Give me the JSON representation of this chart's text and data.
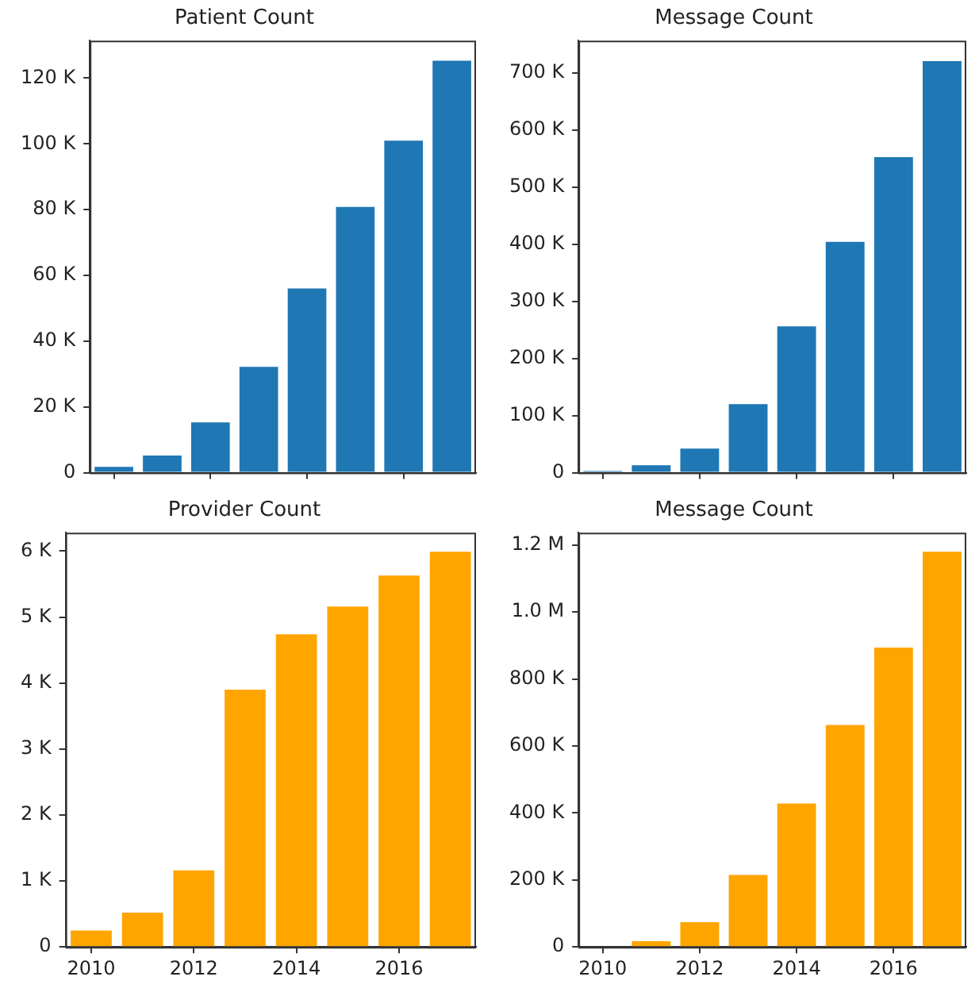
{
  "chart_data": [
    {
      "type": "bar",
      "title": "Patient Count",
      "categories": [
        "2010",
        null,
        "2012",
        null,
        "2014",
        null,
        "2016",
        null
      ],
      "values": [
        1800,
        5200,
        15300,
        32200,
        56000,
        80800,
        101000,
        125300
      ],
      "color": "#1f77b4",
      "ylim": [
        0,
        131400
      ],
      "yticks": [
        {
          "value": 0,
          "label": "0"
        },
        {
          "value": 20000,
          "label": "20 K"
        },
        {
          "value": 40000,
          "label": "40 K"
        },
        {
          "value": 60000,
          "label": "60 K"
        },
        {
          "value": 80000,
          "label": "80 K"
        },
        {
          "value": 100000,
          "label": "100 K"
        },
        {
          "value": 120000,
          "label": "120 K"
        }
      ],
      "tick_labels": "y",
      "grid": false,
      "legend": false
    },
    {
      "type": "bar",
      "title": "Message Count",
      "categories": [
        "2010",
        null,
        "2012",
        null,
        "2014",
        null,
        "2016",
        null
      ],
      "values": [
        3000,
        13000,
        42000,
        120000,
        256000,
        404000,
        552000,
        720000
      ],
      "color": "#1f77b4",
      "ylim": [
        0,
        756000
      ],
      "yticks": [
        {
          "value": 0,
          "label": "0"
        },
        {
          "value": 100000,
          "label": "100 K"
        },
        {
          "value": 200000,
          "label": "200 K"
        },
        {
          "value": 300000,
          "label": "300 K"
        },
        {
          "value": 400000,
          "label": "400 K"
        },
        {
          "value": 500000,
          "label": "500 K"
        },
        {
          "value": 600000,
          "label": "600 K"
        },
        {
          "value": 700000,
          "label": "700 K"
        }
      ],
      "tick_labels": "y",
      "grid": false,
      "legend": false
    },
    {
      "type": "bar",
      "title": "Provider Count",
      "categories": [
        "2010",
        null,
        "2012",
        null,
        "2014",
        null,
        "2016",
        null
      ],
      "values": [
        250,
        520,
        1160,
        3900,
        4740,
        5160,
        5630,
        5990
      ],
      "color": "#ffa500",
      "ylim": [
        0,
        6280
      ],
      "yticks": [
        {
          "value": 0,
          "label": "0"
        },
        {
          "value": 1000,
          "label": "1 K"
        },
        {
          "value": 2000,
          "label": "2 K"
        },
        {
          "value": 3000,
          "label": "3 K"
        },
        {
          "value": 4000,
          "label": "4 K"
        },
        {
          "value": 5000,
          "label": "5 K"
        },
        {
          "value": 6000,
          "label": "6 K"
        }
      ],
      "grid": false,
      "legend": false
    },
    {
      "type": "bar",
      "title": "Message Count",
      "categories": [
        "2010",
        null,
        "2012",
        null,
        "2014",
        null,
        "2016",
        null
      ],
      "values": [
        null,
        17000,
        74000,
        215000,
        428000,
        663000,
        894000,
        1180000
      ],
      "color": "#ffa500",
      "ylim": [
        0,
        1237000
      ],
      "yticks": [
        {
          "value": 0,
          "label": "0"
        },
        {
          "value": 200000,
          "label": "200 K"
        },
        {
          "value": 400000,
          "label": "400 K"
        },
        {
          "value": 600000,
          "label": "600 K"
        },
        {
          "value": 800000,
          "label": "800 K"
        },
        {
          "value": 1000000,
          "label": "1.0 M"
        },
        {
          "value": 1200000,
          "label": "1.2 M"
        }
      ],
      "grid": false,
      "legend": false
    }
  ]
}
